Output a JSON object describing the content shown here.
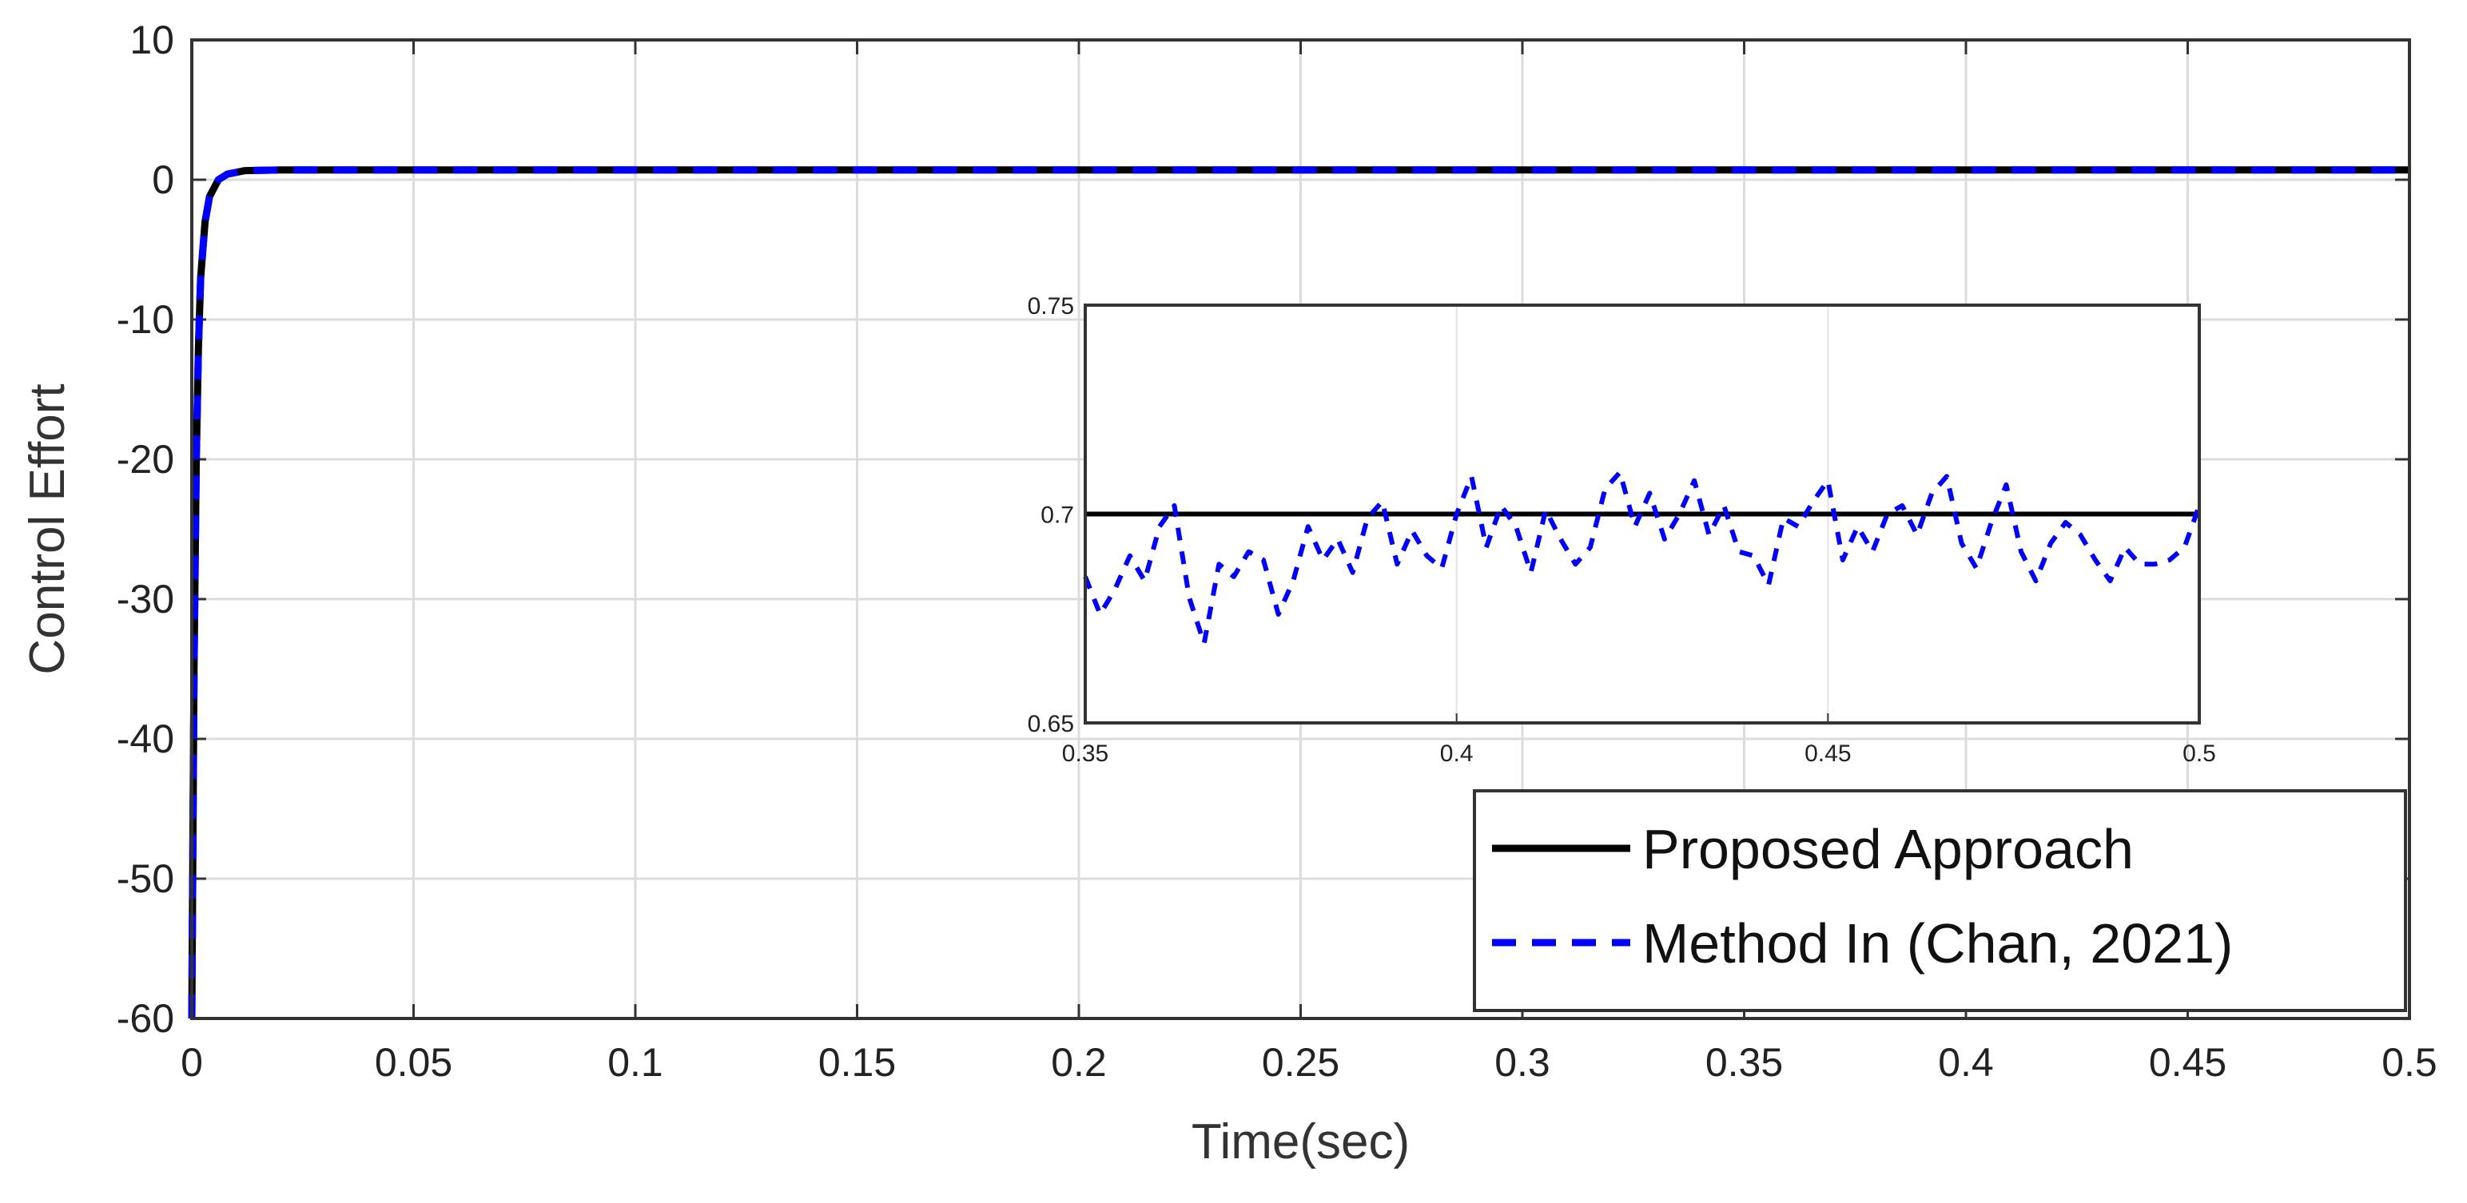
{
  "chart_data": {
    "type": "line",
    "xlabel": "Time(sec)",
    "ylabel": "Control Effort",
    "xlim": [
      0,
      0.5
    ],
    "ylim": [
      -60,
      10
    ],
    "grid": true,
    "legend_placement": "bottom-right",
    "x_ticks": [
      0,
      0.05,
      0.1,
      0.15,
      0.2,
      0.25,
      0.3,
      0.35,
      0.4,
      0.45,
      0.5
    ],
    "x_tick_labels": [
      "0",
      "0.05",
      "0.1",
      "0.15",
      "0.2",
      "0.25",
      "0.3",
      "0.35",
      "0.4",
      "0.45",
      "0.5"
    ],
    "y_ticks": [
      10,
      0,
      -10,
      -20,
      -30,
      -40,
      -50,
      -60
    ],
    "y_tick_labels": [
      "10",
      "0",
      "-10",
      "-20",
      "-30",
      "-40",
      "-50",
      "-60"
    ],
    "series": [
      {
        "name": "Proposed Approach",
        "color": "#000000",
        "style": "solid",
        "x": [
          0,
          0.0005,
          0.001,
          0.0015,
          0.002,
          0.003,
          0.004,
          0.006,
          0.008,
          0.012,
          0.02,
          0.05,
          0.1,
          0.2,
          0.3,
          0.4,
          0.5
        ],
        "y": [
          -60,
          -35,
          -20,
          -12,
          -7,
          -3,
          -1.2,
          0,
          0.4,
          0.65,
          0.7,
          0.7,
          0.7,
          0.7,
          0.7,
          0.7,
          0.7
        ]
      },
      {
        "name": "Method In (Chan, 2021)",
        "color": "#0000ff",
        "style": "dashed",
        "x": [
          0,
          0.0005,
          0.001,
          0.0015,
          0.002,
          0.003,
          0.004,
          0.006,
          0.008,
          0.012,
          0.02,
          0.05,
          0.1,
          0.2,
          0.3,
          0.4,
          0.5
        ],
        "y": [
          -60,
          -35,
          -20,
          -12,
          -7,
          -3,
          -1.2,
          0,
          0.4,
          0.65,
          0.7,
          0.7,
          0.7,
          0.7,
          0.7,
          0.7,
          0.7
        ]
      }
    ],
    "inset": {
      "xlim": [
        0.35,
        0.5
      ],
      "ylim": [
        0.65,
        0.75
      ],
      "x_ticks": [
        0.35,
        0.4,
        0.45,
        0.5
      ],
      "x_tick_labels": [
        "0.35",
        "0.4",
        "0.45",
        "0.5"
      ],
      "y_ticks": [
        0.75,
        0.7,
        0.65
      ],
      "y_tick_labels": [
        "0.75",
        "0.7",
        "0.65"
      ],
      "series": [
        {
          "name": "Proposed Approach",
          "color": "#000000",
          "style": "solid",
          "x": [
            0.35,
            0.5
          ],
          "y": [
            0.7,
            0.7
          ]
        },
        {
          "name": "Method In (Chan, 2021)",
          "color": "#0000ff",
          "style": "dashed",
          "x": [
            0.35,
            0.352,
            0.354,
            0.356,
            0.358,
            0.36,
            0.362,
            0.364,
            0.366,
            0.368,
            0.37,
            0.372,
            0.374,
            0.376,
            0.378,
            0.38,
            0.382,
            0.384,
            0.386,
            0.388,
            0.39,
            0.392,
            0.394,
            0.396,
            0.398,
            0.4,
            0.402,
            0.404,
            0.406,
            0.408,
            0.41,
            0.412,
            0.414,
            0.416,
            0.418,
            0.42,
            0.422,
            0.424,
            0.426,
            0.428,
            0.43,
            0.432,
            0.434,
            0.436,
            0.438,
            0.44,
            0.442,
            0.444,
            0.446,
            0.448,
            0.45,
            0.452,
            0.454,
            0.456,
            0.458,
            0.46,
            0.462,
            0.464,
            0.466,
            0.468,
            0.47,
            0.472,
            0.474,
            0.476,
            0.478,
            0.48,
            0.482,
            0.484,
            0.486,
            0.488,
            0.49,
            0.492,
            0.494,
            0.496,
            0.498,
            0.5
          ],
          "y": [
            0.685,
            0.676,
            0.682,
            0.69,
            0.684,
            0.697,
            0.702,
            0.68,
            0.669,
            0.688,
            0.685,
            0.691,
            0.689,
            0.676,
            0.684,
            0.697,
            0.689,
            0.694,
            0.686,
            0.699,
            0.703,
            0.688,
            0.696,
            0.69,
            0.687,
            0.7,
            0.709,
            0.692,
            0.702,
            0.697,
            0.686,
            0.701,
            0.694,
            0.688,
            0.692,
            0.706,
            0.71,
            0.697,
            0.705,
            0.694,
            0.7,
            0.708,
            0.695,
            0.702,
            0.691,
            0.69,
            0.683,
            0.699,
            0.697,
            0.703,
            0.708,
            0.689,
            0.697,
            0.691,
            0.7,
            0.702,
            0.695,
            0.705,
            0.709,
            0.693,
            0.687,
            0.698,
            0.707,
            0.691,
            0.684,
            0.693,
            0.698,
            0.695,
            0.689,
            0.684,
            0.692,
            0.688,
            0.688,
            0.689,
            0.692,
            0.702
          ]
        }
      ]
    },
    "legend": {
      "entries": [
        {
          "label": "Proposed Approach",
          "color": "#000000",
          "style": "solid"
        },
        {
          "label": "Method In (Chan, 2021)",
          "color": "#0000ff",
          "style": "dashed"
        }
      ]
    }
  }
}
